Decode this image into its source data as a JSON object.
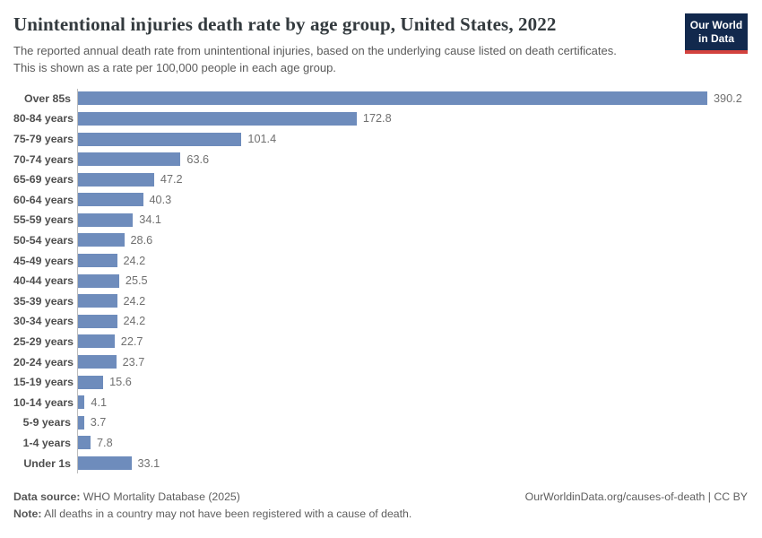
{
  "header": {
    "title": "Unintentional injuries death rate by age group, United States, 2022",
    "subtitle": "The reported annual death rate from unintentional injuries, based on the underlying cause listed on death certificates. This is shown as a rate per 100,000 people in each age group.",
    "logo": {
      "line1": "Our World",
      "line2": "in Data"
    }
  },
  "chart_data": {
    "type": "bar",
    "orientation": "horizontal",
    "title": "Unintentional injuries death rate by age group, United States, 2022",
    "xlabel": "",
    "ylabel": "",
    "xlim": [
      0,
      400
    ],
    "grid": false,
    "legend": "none",
    "bar_color": "#6e8cbc",
    "axis_line_color": "#bdbdbd",
    "categories": [
      "Over 85s",
      "80-84 years",
      "75-79 years",
      "70-74 years",
      "65-69 years",
      "60-64 years",
      "55-59 years",
      "50-54 years",
      "45-49 years",
      "40-44 years",
      "35-39 years",
      "30-34 years",
      "25-29 years",
      "20-24 years",
      "15-19 years",
      "10-14 years",
      "5-9 years",
      "1-4 years",
      "Under 1s"
    ],
    "values": [
      390.2,
      172.8,
      101.4,
      63.6,
      47.2,
      40.3,
      34.1,
      28.6,
      24.2,
      25.5,
      24.2,
      24.2,
      22.7,
      23.7,
      15.6,
      4.1,
      3.7,
      7.8,
      33.1
    ]
  },
  "footer": {
    "data_source_label": "Data source:",
    "data_source_text": " WHO Mortality Database (2025)",
    "note_label": "Note:",
    "note_text": " All deaths in a country may not have been registered with a cause of death.",
    "link": "OurWorldinData.org/causes-of-death | CC BY"
  }
}
